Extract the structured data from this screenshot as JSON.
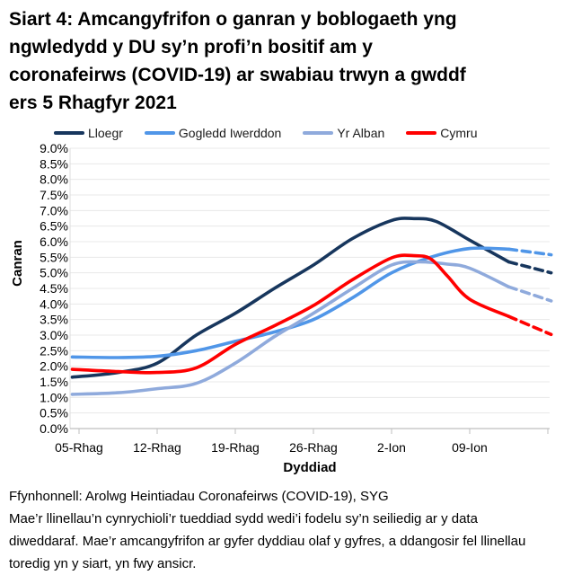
{
  "header": {
    "title": "Siart 4: Amcangyfrifon o ganran y boblogaeth yng ngwledydd y DU sy’n profi’n bositif am y coronafeirws (COVID-19) ar swabiau trwyn a gwddf ers 5 Rhagfyr 2021",
    "title_lines": [
      "Siart 4: Amcangyfrifon o ganran y boblogaeth yng",
      "ngwledydd y DU sy’n profi’n bositif am y",
      "coronafeirws (COVID-19) ar swabiau trwyn a gwddf",
      "ers 5 Rhagfyr 2021"
    ]
  },
  "chart_data": {
    "type": "line",
    "title": "Siart 4: Amcangyfrifon o ganran y boblogaeth yng ngwledydd y DU sy’n profi’n bositif am y coronafeirws (COVID-19) ar swabiau trwyn a gwddf ers 5 Rhagfyr 2021",
    "xlabel": "Dyddiad",
    "ylabel": "Canran",
    "ylim": [
      0,
      9
    ],
    "y_tick_step": 0.5,
    "grid": "horizontal",
    "legend_position": "top",
    "y_tick_labels": [
      "9.0%",
      "8.5%",
      "8.0%",
      "7.5%",
      "7.0%",
      "6.5%",
      "6.0%",
      "5.5%",
      "5.0%",
      "4.5%",
      "4.0%",
      "3.5%",
      "3.0%",
      "2.5%",
      "2.0%",
      "1.5%",
      "1.0%",
      "0.5%",
      "0.0%"
    ],
    "x_tick_labels": [
      "05-Rhag",
      "12-Rhag",
      "19-Rhag",
      "26-Rhag",
      "2-Ion",
      "09-Ion"
    ],
    "x_tick_days": [
      0,
      7,
      14,
      21,
      28,
      35
    ],
    "x_axis_tick_days": [
      0,
      7,
      14,
      21,
      28,
      35,
      42
    ],
    "x_domain_days": [
      -0.6,
      42.3
    ],
    "dash_from_day": 38.5,
    "dash_note": "llinellau toredig = amcangyfrifon mwy ansicr ar gyfer dyddiau olaf y gyfres",
    "series": [
      {
        "name": "Lloegr",
        "color": "#17365D",
        "points": [
          [
            -0.6,
            1.65
          ],
          [
            3.5,
            1.8
          ],
          [
            7,
            2.1
          ],
          [
            10.5,
            3.0
          ],
          [
            14,
            3.7
          ],
          [
            17.5,
            4.5
          ],
          [
            21,
            5.25
          ],
          [
            24.5,
            6.1
          ],
          [
            28,
            6.68
          ],
          [
            30,
            6.74
          ],
          [
            32,
            6.65
          ],
          [
            35,
            6.05
          ],
          [
            38.5,
            5.35
          ],
          [
            42.3,
            5.0
          ]
        ]
      },
      {
        "name": "Gogledd Iwerddon",
        "color": "#5096E8",
        "points": [
          [
            -0.6,
            2.3
          ],
          [
            3.5,
            2.28
          ],
          [
            7,
            2.32
          ],
          [
            10.5,
            2.5
          ],
          [
            14,
            2.8
          ],
          [
            17.5,
            3.1
          ],
          [
            21,
            3.5
          ],
          [
            24.5,
            4.2
          ],
          [
            28,
            5.0
          ],
          [
            31.5,
            5.5
          ],
          [
            35,
            5.78
          ],
          [
            38.5,
            5.76
          ],
          [
            42.3,
            5.58
          ]
        ]
      },
      {
        "name": "Yr Alban",
        "color": "#8FAADC",
        "points": [
          [
            -0.6,
            1.1
          ],
          [
            3.5,
            1.15
          ],
          [
            7,
            1.28
          ],
          [
            10.5,
            1.45
          ],
          [
            14,
            2.1
          ],
          [
            17.5,
            2.95
          ],
          [
            21,
            3.7
          ],
          [
            24.5,
            4.5
          ],
          [
            28,
            5.25
          ],
          [
            30.5,
            5.35
          ],
          [
            33,
            5.28
          ],
          [
            35,
            5.15
          ],
          [
            38.5,
            4.55
          ],
          [
            42.3,
            4.1
          ]
        ]
      },
      {
        "name": "Cymru",
        "color": "#FF0000",
        "points": [
          [
            -0.6,
            1.9
          ],
          [
            3.5,
            1.83
          ],
          [
            7,
            1.8
          ],
          [
            10.5,
            1.95
          ],
          [
            14,
            2.7
          ],
          [
            17.5,
            3.3
          ],
          [
            21,
            3.95
          ],
          [
            24.5,
            4.78
          ],
          [
            28,
            5.48
          ],
          [
            30,
            5.55
          ],
          [
            31.5,
            5.45
          ],
          [
            33,
            4.9
          ],
          [
            35,
            4.15
          ],
          [
            38.5,
            3.6
          ],
          [
            42.3,
            3.02
          ]
        ]
      }
    ]
  },
  "footer": {
    "text": "Ffynhonnell: Arolwg Heintiadau Coronafeirws (COVID-19), SYG Mae’r llinellau’n cynrychioli’r tueddiad sydd wedi’i fodelu sy’n seiliedig ar y data diweddaraf. Mae’r amcangyfrifon ar gyfer dyddiau olaf y gyfres, a ddangosir fel llinellau toredig yn y siart, yn fwy ansicr.",
    "lines": [
      "Ffynhonnell: Arolwg Heintiadau Coronafeirws (COVID-19), SYG",
      "Mae’r llinellau’n cynrychioli’r tueddiad sydd wedi’i fodelu sy’n seiliedig ar y data",
      "diweddaraf. Mae’r amcangyfrifon ar gyfer dyddiau olaf y gyfres, a ddangosir fel llinellau",
      "toredig yn y siart, yn fwy ansicr."
    ]
  }
}
